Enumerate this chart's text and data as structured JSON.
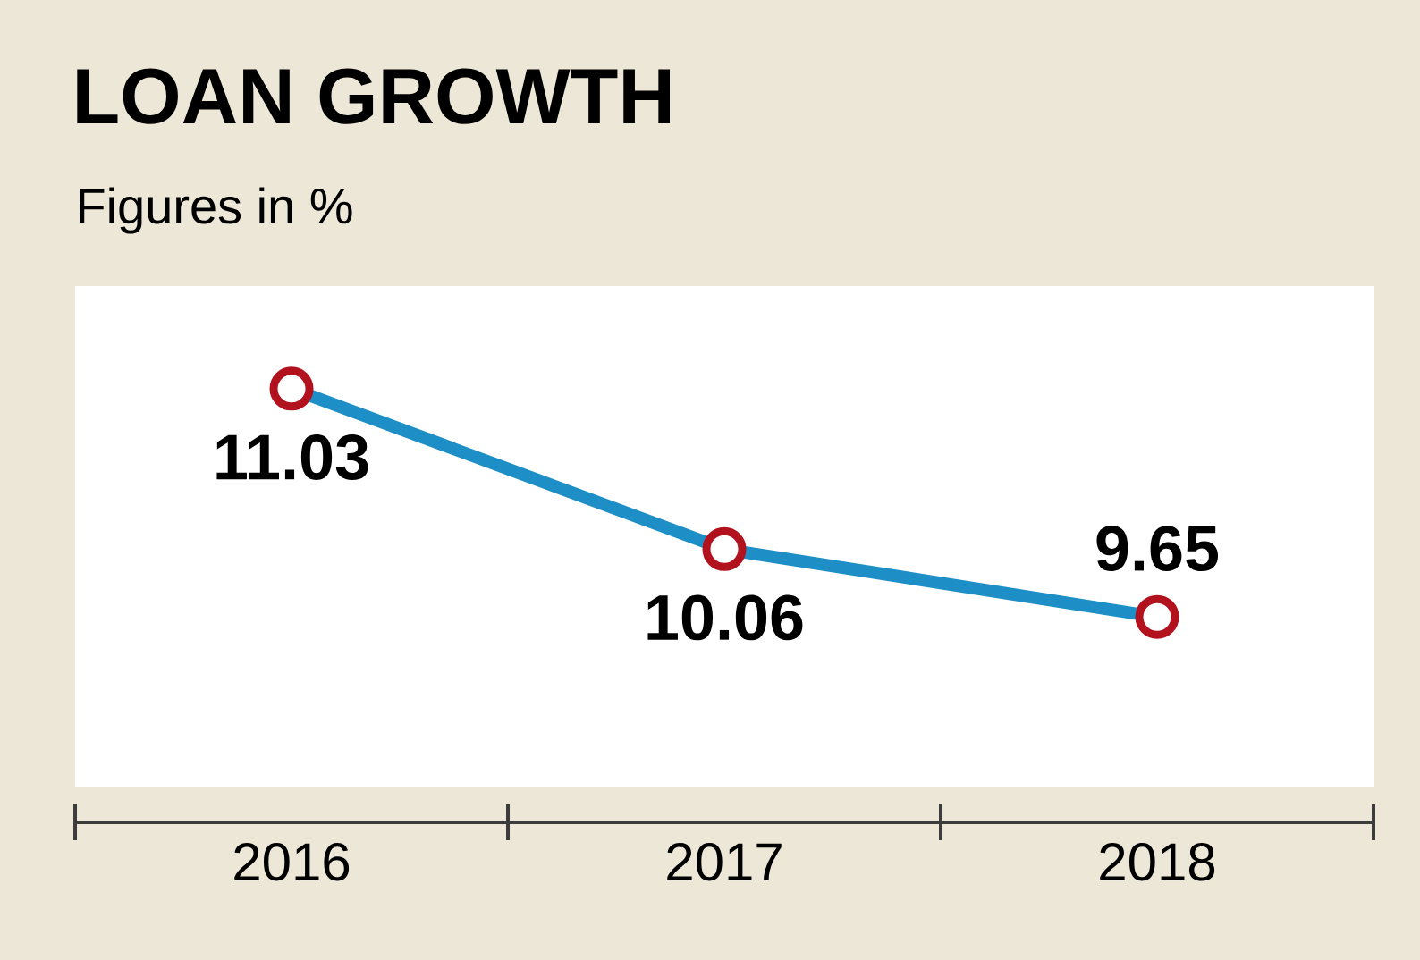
{
  "chart_data": {
    "type": "line",
    "title": "LOAN GROWTH",
    "subtitle": "Figures in %",
    "categories": [
      "2016",
      "2017",
      "2018"
    ],
    "series": [
      {
        "color": "#1d8ec6",
        "values": [
          11.03,
          10.06,
          9.65
        ]
      }
    ],
    "data_labels": true,
    "marker": "circle",
    "line_style": "solid",
    "tick_labels": "x"
  }
}
